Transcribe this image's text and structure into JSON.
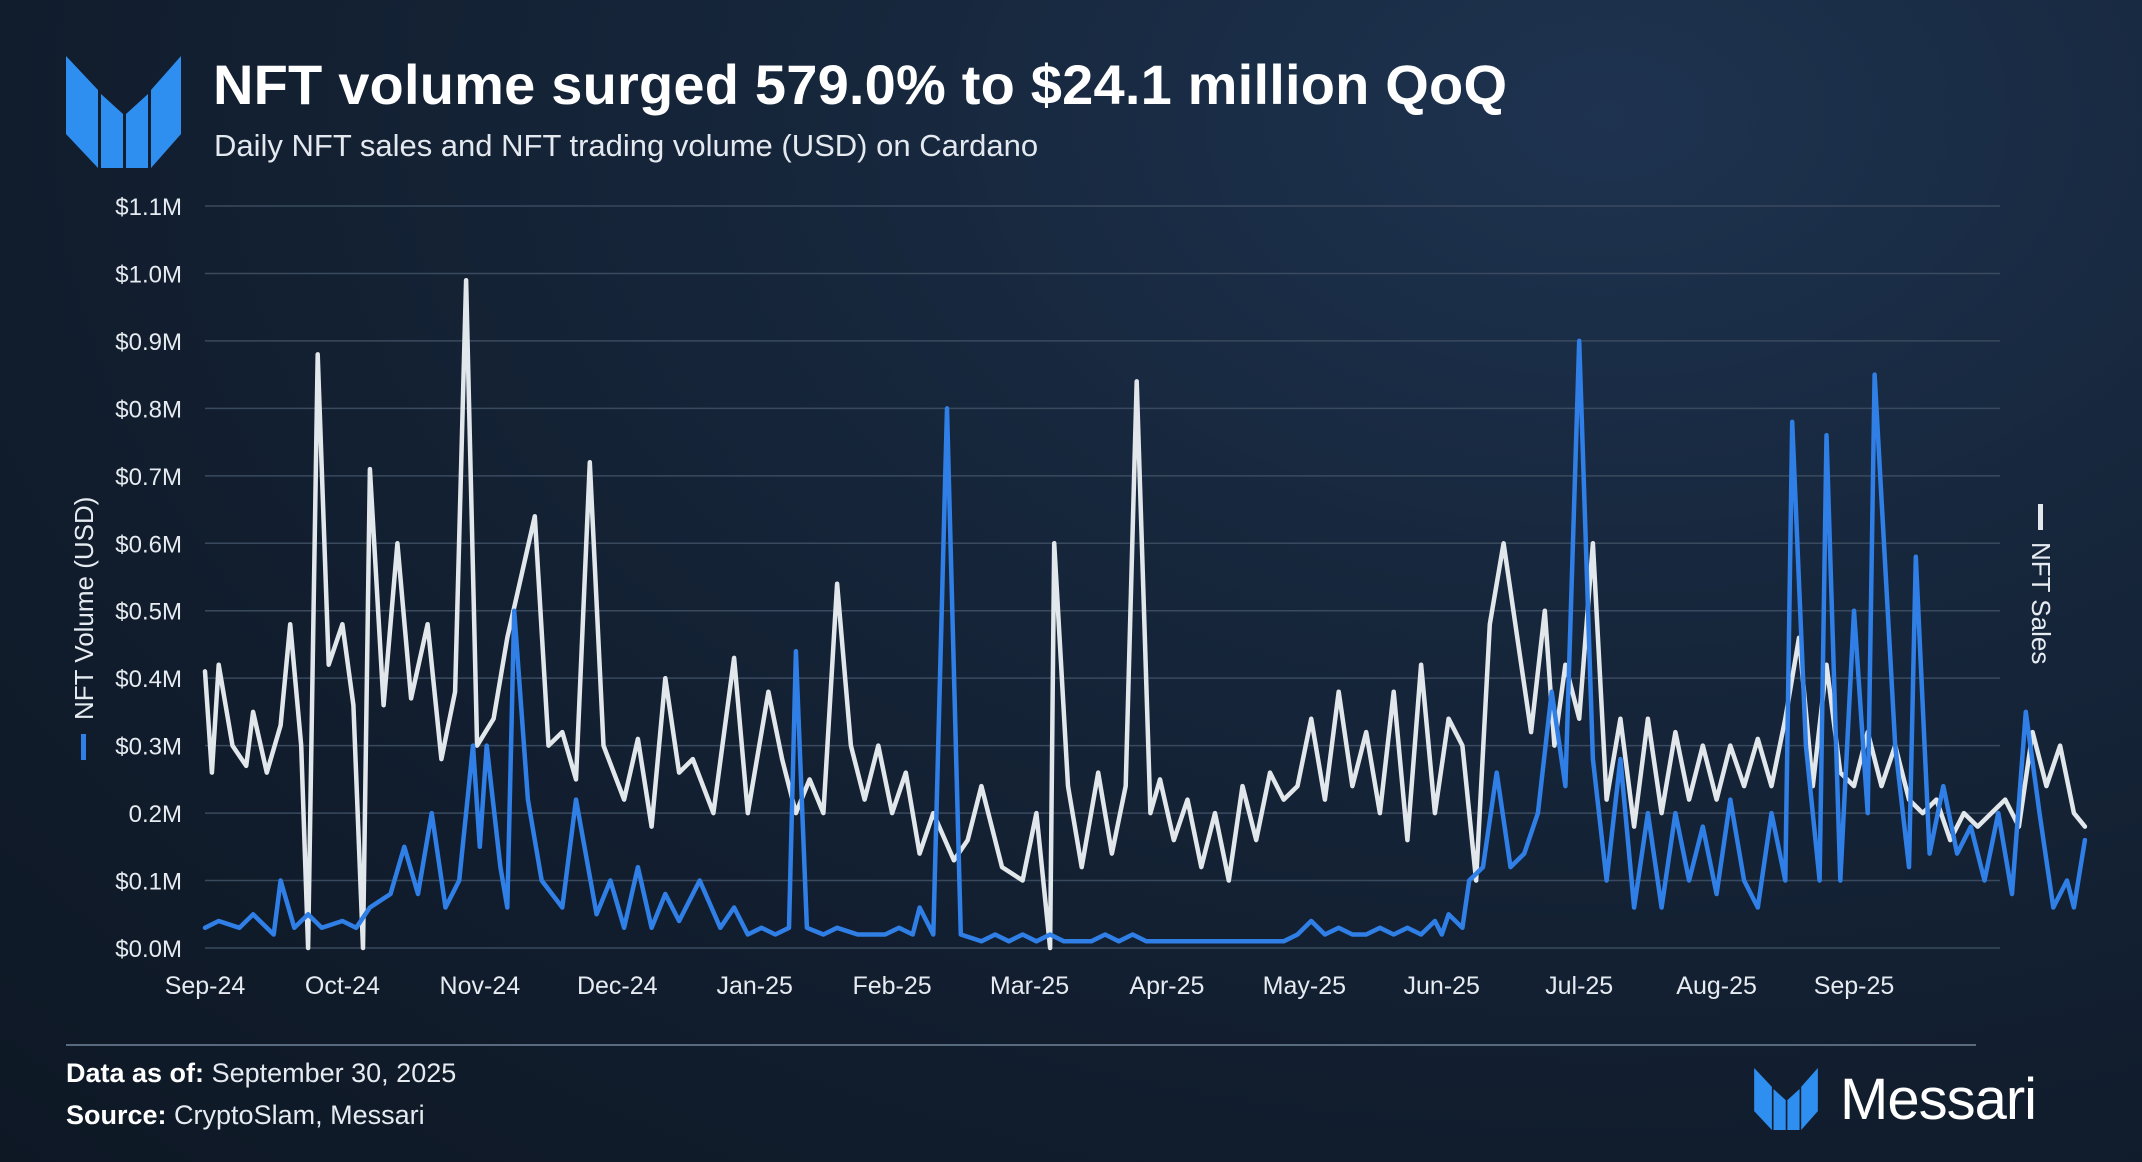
{
  "header": {
    "title": "NFT volume surged 579.0% to $24.1 million QoQ",
    "subtitle": "Daily NFT sales and NFT trading volume (USD) on Cardano"
  },
  "footer": {
    "data_as_of_label": "Data as of:",
    "data_as_of_value": "September 30, 2025",
    "source_label": "Source:",
    "source_value": "CryptoSlam, Messari",
    "brand_name": "Messari"
  },
  "colors": {
    "volume": "#2f7fe6",
    "sales": "#e2e7ec",
    "logo": "#2f8ff0",
    "grid": "#3a4a5e"
  },
  "chart_data": {
    "type": "line",
    "title": "NFT volume surged 579.0% to $24.1 million QoQ",
    "subtitle": "Daily NFT sales and NFT trading volume (USD) on Cardano",
    "xlabel": "",
    "ylabel": "NFT Volume (USD)",
    "y2label": "NFT Sales",
    "ylim": [
      0,
      1.1
    ],
    "y_ticks": [
      0,
      0.1,
      0.2,
      0.3,
      0.4,
      0.5,
      0.6,
      0.7,
      0.8,
      0.9,
      1.0,
      1.1
    ],
    "y_tick_labels": [
      "$0.0M",
      "$0.1M",
      "0.2M",
      "$0.3M",
      "$0.4M",
      "$0.5M",
      "$0.6M",
      "$0.7M",
      "$0.8M",
      "$0.9M",
      "$1.0M",
      "$1.1M"
    ],
    "x_ticks": [
      "Sep-24",
      "Oct-24",
      "Nov-24",
      "Dec-24",
      "Jan-25",
      "Feb-25",
      "Mar-25",
      "Apr-25",
      "May-25",
      "Jun-25",
      "Jul-25",
      "Aug-25",
      "Sep-25"
    ],
    "x_unit": "month index (0 = Sep-24)",
    "legend": [
      "NFT Volume (USD)",
      "NFT Sales"
    ],
    "grid": true,
    "series": [
      {
        "name": "NFT Volume (USD)",
        "color": "#2f7fe6",
        "points": [
          [
            0.0,
            0.03
          ],
          [
            0.1,
            0.04
          ],
          [
            0.25,
            0.03
          ],
          [
            0.35,
            0.05
          ],
          [
            0.5,
            0.02
          ],
          [
            0.55,
            0.1
          ],
          [
            0.65,
            0.03
          ],
          [
            0.75,
            0.05
          ],
          [
            0.85,
            0.03
          ],
          [
            1.0,
            0.04
          ],
          [
            1.1,
            0.03
          ],
          [
            1.2,
            0.06
          ],
          [
            1.35,
            0.08
          ],
          [
            1.45,
            0.15
          ],
          [
            1.55,
            0.08
          ],
          [
            1.65,
            0.2
          ],
          [
            1.75,
            0.06
          ],
          [
            1.85,
            0.1
          ],
          [
            1.95,
            0.3
          ],
          [
            2.0,
            0.15
          ],
          [
            2.05,
            0.3
          ],
          [
            2.15,
            0.12
          ],
          [
            2.2,
            0.06
          ],
          [
            2.25,
            0.5
          ],
          [
            2.35,
            0.22
          ],
          [
            2.45,
            0.1
          ],
          [
            2.6,
            0.06
          ],
          [
            2.7,
            0.22
          ],
          [
            2.85,
            0.05
          ],
          [
            2.95,
            0.1
          ],
          [
            3.05,
            0.03
          ],
          [
            3.15,
            0.12
          ],
          [
            3.25,
            0.03
          ],
          [
            3.35,
            0.08
          ],
          [
            3.45,
            0.04
          ],
          [
            3.6,
            0.1
          ],
          [
            3.75,
            0.03
          ],
          [
            3.85,
            0.06
          ],
          [
            3.95,
            0.02
          ],
          [
            4.05,
            0.03
          ],
          [
            4.15,
            0.02
          ],
          [
            4.25,
            0.03
          ],
          [
            4.3,
            0.44
          ],
          [
            4.38,
            0.03
          ],
          [
            4.5,
            0.02
          ],
          [
            4.6,
            0.03
          ],
          [
            4.75,
            0.02
          ],
          [
            4.85,
            0.02
          ],
          [
            4.95,
            0.02
          ],
          [
            5.05,
            0.03
          ],
          [
            5.15,
            0.02
          ],
          [
            5.2,
            0.06
          ],
          [
            5.3,
            0.02
          ],
          [
            5.4,
            0.8
          ],
          [
            5.5,
            0.02
          ],
          [
            5.65,
            0.01
          ],
          [
            5.75,
            0.02
          ],
          [
            5.85,
            0.01
          ],
          [
            5.95,
            0.02
          ],
          [
            6.05,
            0.01
          ],
          [
            6.15,
            0.02
          ],
          [
            6.25,
            0.01
          ],
          [
            6.35,
            0.01
          ],
          [
            6.45,
            0.01
          ],
          [
            6.55,
            0.02
          ],
          [
            6.65,
            0.01
          ],
          [
            6.75,
            0.02
          ],
          [
            6.85,
            0.01
          ],
          [
            6.95,
            0.01
          ],
          [
            7.05,
            0.01
          ],
          [
            7.15,
            0.01
          ],
          [
            7.25,
            0.01
          ],
          [
            7.35,
            0.01
          ],
          [
            7.45,
            0.01
          ],
          [
            7.55,
            0.01
          ],
          [
            7.65,
            0.01
          ],
          [
            7.75,
            0.01
          ],
          [
            7.85,
            0.01
          ],
          [
            7.95,
            0.02
          ],
          [
            8.05,
            0.04
          ],
          [
            8.15,
            0.02
          ],
          [
            8.25,
            0.03
          ],
          [
            8.35,
            0.02
          ],
          [
            8.45,
            0.02
          ],
          [
            8.55,
            0.03
          ],
          [
            8.65,
            0.02
          ],
          [
            8.75,
            0.03
          ],
          [
            8.85,
            0.02
          ],
          [
            8.95,
            0.04
          ],
          [
            9.0,
            0.02
          ],
          [
            9.05,
            0.05
          ],
          [
            9.15,
            0.03
          ],
          [
            9.2,
            0.1
          ],
          [
            9.3,
            0.12
          ],
          [
            9.4,
            0.26
          ],
          [
            9.5,
            0.12
          ],
          [
            9.6,
            0.14
          ],
          [
            9.7,
            0.2
          ],
          [
            9.8,
            0.38
          ],
          [
            9.9,
            0.24
          ],
          [
            10.0,
            0.9
          ],
          [
            10.1,
            0.28
          ],
          [
            10.2,
            0.1
          ],
          [
            10.3,
            0.28
          ],
          [
            10.4,
            0.06
          ],
          [
            10.5,
            0.2
          ],
          [
            10.6,
            0.06
          ],
          [
            10.7,
            0.2
          ],
          [
            10.8,
            0.1
          ],
          [
            10.9,
            0.18
          ],
          [
            11.0,
            0.08
          ],
          [
            11.1,
            0.22
          ],
          [
            11.2,
            0.1
          ],
          [
            11.3,
            0.06
          ],
          [
            11.4,
            0.2
          ],
          [
            11.5,
            0.1
          ],
          [
            11.55,
            0.78
          ],
          [
            11.65,
            0.3
          ],
          [
            11.75,
            0.1
          ],
          [
            11.8,
            0.76
          ],
          [
            11.9,
            0.1
          ],
          [
            12.0,
            0.5
          ],
          [
            12.1,
            0.2
          ],
          [
            12.15,
            0.85
          ],
          [
            12.3,
            0.3
          ],
          [
            12.4,
            0.12
          ],
          [
            12.45,
            0.58
          ],
          [
            12.55,
            0.14
          ],
          [
            12.65,
            0.24
          ],
          [
            12.75,
            0.14
          ],
          [
            12.85,
            0.18
          ],
          [
            12.95,
            0.1
          ],
          [
            13.05,
            0.2
          ],
          [
            13.15,
            0.08
          ],
          [
            13.25,
            0.35
          ],
          [
            13.35,
            0.2
          ],
          [
            13.45,
            0.06
          ],
          [
            13.55,
            0.1
          ],
          [
            13.6,
            0.06
          ],
          [
            13.68,
            0.16
          ]
        ]
      },
      {
        "name": "NFT Sales",
        "color": "#e2e7ec",
        "points": [
          [
            0.0,
            0.41
          ],
          [
            0.05,
            0.26
          ],
          [
            0.1,
            0.42
          ],
          [
            0.2,
            0.3
          ],
          [
            0.3,
            0.27
          ],
          [
            0.35,
            0.35
          ],
          [
            0.45,
            0.26
          ],
          [
            0.55,
            0.33
          ],
          [
            0.62,
            0.48
          ],
          [
            0.7,
            0.3
          ],
          [
            0.75,
            0.0
          ],
          [
            0.82,
            0.88
          ],
          [
            0.9,
            0.42
          ],
          [
            1.0,
            0.48
          ],
          [
            1.08,
            0.36
          ],
          [
            1.15,
            0.0
          ],
          [
            1.2,
            0.71
          ],
          [
            1.3,
            0.36
          ],
          [
            1.4,
            0.6
          ],
          [
            1.5,
            0.37
          ],
          [
            1.62,
            0.48
          ],
          [
            1.72,
            0.28
          ],
          [
            1.82,
            0.38
          ],
          [
            1.9,
            0.99
          ],
          [
            1.98,
            0.3
          ],
          [
            2.1,
            0.34
          ],
          [
            2.2,
            0.46
          ],
          [
            2.3,
            0.55
          ],
          [
            2.4,
            0.64
          ],
          [
            2.5,
            0.3
          ],
          [
            2.6,
            0.32
          ],
          [
            2.7,
            0.25
          ],
          [
            2.8,
            0.72
          ],
          [
            2.9,
            0.3
          ],
          [
            3.05,
            0.22
          ],
          [
            3.15,
            0.31
          ],
          [
            3.25,
            0.18
          ],
          [
            3.35,
            0.4
          ],
          [
            3.45,
            0.26
          ],
          [
            3.55,
            0.28
          ],
          [
            3.7,
            0.2
          ],
          [
            3.85,
            0.43
          ],
          [
            3.95,
            0.2
          ],
          [
            4.1,
            0.38
          ],
          [
            4.2,
            0.28
          ],
          [
            4.3,
            0.2
          ],
          [
            4.4,
            0.25
          ],
          [
            4.5,
            0.2
          ],
          [
            4.6,
            0.54
          ],
          [
            4.7,
            0.3
          ],
          [
            4.8,
            0.22
          ],
          [
            4.9,
            0.3
          ],
          [
            5.0,
            0.2
          ],
          [
            5.1,
            0.26
          ],
          [
            5.2,
            0.14
          ],
          [
            5.3,
            0.2
          ],
          [
            5.45,
            0.13
          ],
          [
            5.55,
            0.16
          ],
          [
            5.65,
            0.24
          ],
          [
            5.8,
            0.12
          ],
          [
            5.95,
            0.1
          ],
          [
            6.05,
            0.2
          ],
          [
            6.15,
            0.0
          ],
          [
            6.18,
            0.6
          ],
          [
            6.28,
            0.24
          ],
          [
            6.38,
            0.12
          ],
          [
            6.5,
            0.26
          ],
          [
            6.6,
            0.14
          ],
          [
            6.7,
            0.24
          ],
          [
            6.78,
            0.84
          ],
          [
            6.88,
            0.2
          ],
          [
            6.95,
            0.25
          ],
          [
            7.05,
            0.16
          ],
          [
            7.15,
            0.22
          ],
          [
            7.25,
            0.12
          ],
          [
            7.35,
            0.2
          ],
          [
            7.45,
            0.1
          ],
          [
            7.55,
            0.24
          ],
          [
            7.65,
            0.16
          ],
          [
            7.75,
            0.26
          ],
          [
            7.85,
            0.22
          ],
          [
            7.95,
            0.24
          ],
          [
            8.05,
            0.34
          ],
          [
            8.15,
            0.22
          ],
          [
            8.25,
            0.38
          ],
          [
            8.35,
            0.24
          ],
          [
            8.45,
            0.32
          ],
          [
            8.55,
            0.2
          ],
          [
            8.65,
            0.38
          ],
          [
            8.75,
            0.16
          ],
          [
            8.85,
            0.42
          ],
          [
            8.95,
            0.2
          ],
          [
            9.05,
            0.34
          ],
          [
            9.15,
            0.3
          ],
          [
            9.25,
            0.1
          ],
          [
            9.35,
            0.48
          ],
          [
            9.45,
            0.6
          ],
          [
            9.55,
            0.46
          ],
          [
            9.65,
            0.32
          ],
          [
            9.75,
            0.5
          ],
          [
            9.82,
            0.3
          ],
          [
            9.9,
            0.42
          ],
          [
            10.0,
            0.34
          ],
          [
            10.1,
            0.6
          ],
          [
            10.2,
            0.22
          ],
          [
            10.3,
            0.34
          ],
          [
            10.4,
            0.18
          ],
          [
            10.5,
            0.34
          ],
          [
            10.6,
            0.2
          ],
          [
            10.7,
            0.32
          ],
          [
            10.8,
            0.22
          ],
          [
            10.9,
            0.3
          ],
          [
            11.0,
            0.22
          ],
          [
            11.1,
            0.3
          ],
          [
            11.2,
            0.24
          ],
          [
            11.3,
            0.31
          ],
          [
            11.4,
            0.24
          ],
          [
            11.5,
            0.34
          ],
          [
            11.6,
            0.46
          ],
          [
            11.7,
            0.24
          ],
          [
            11.8,
            0.42
          ],
          [
            11.9,
            0.26
          ],
          [
            12.0,
            0.24
          ],
          [
            12.1,
            0.32
          ],
          [
            12.2,
            0.24
          ],
          [
            12.3,
            0.3
          ],
          [
            12.4,
            0.22
          ],
          [
            12.5,
            0.2
          ],
          [
            12.6,
            0.22
          ],
          [
            12.7,
            0.16
          ],
          [
            12.8,
            0.2
          ],
          [
            12.9,
            0.18
          ],
          [
            13.0,
            0.2
          ],
          [
            13.1,
            0.22
          ],
          [
            13.2,
            0.18
          ],
          [
            13.3,
            0.32
          ],
          [
            13.4,
            0.24
          ],
          [
            13.5,
            0.3
          ],
          [
            13.6,
            0.2
          ],
          [
            13.68,
            0.18
          ]
        ]
      }
    ]
  }
}
